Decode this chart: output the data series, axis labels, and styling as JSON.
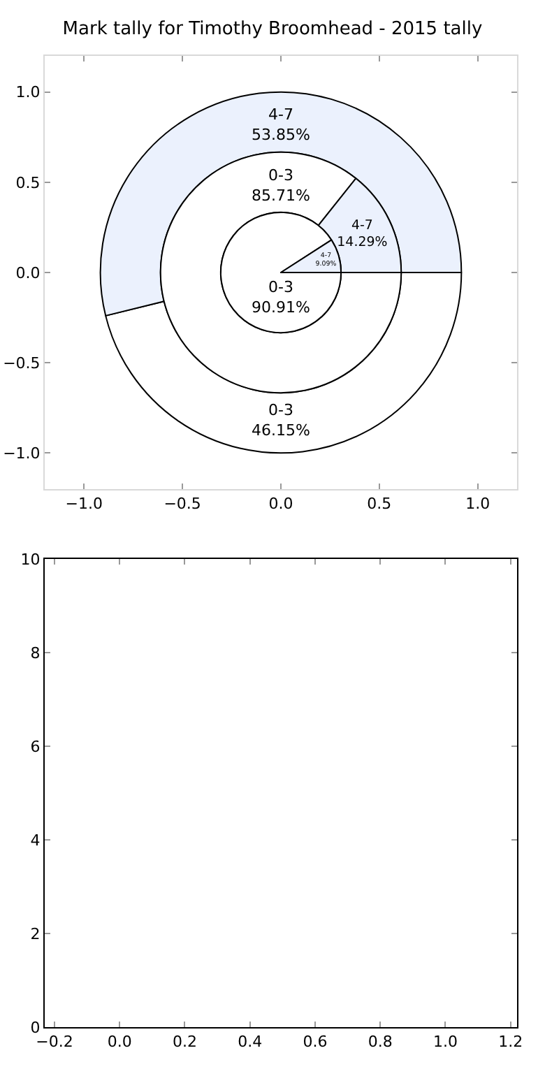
{
  "chart_data": [
    {
      "type": "scatter",
      "title": "Mark tally for Timothy Broomhead - 2015 tally",
      "xlim": [
        -1.2,
        1.2
      ],
      "ylim": [
        -1.2,
        1.2
      ],
      "xticks": [
        {
          "value": -1,
          "label": "−1.0"
        },
        {
          "value": -0.5,
          "label": "−0.5"
        },
        {
          "value": 0,
          "label": "0.0"
        },
        {
          "value": 0.5,
          "label": "0.5"
        },
        {
          "value": 1,
          "label": "1.0"
        }
      ],
      "yticks": [
        {
          "value": -1,
          "label": "−1.0"
        },
        {
          "value": -0.5,
          "label": "−0.5"
        },
        {
          "value": 0,
          "label": "0.0"
        },
        {
          "value": 0.5,
          "label": "0.5"
        },
        {
          "value": 1,
          "label": "1.0"
        }
      ]
    },
    {
      "type": "donut",
      "categories": [
        "0-3",
        "4-7"
      ],
      "colors": [
        "#ffffff",
        "#ebf1fd"
      ],
      "values": [
        46.15,
        53.85
      ],
      "value_labels": [
        "46.15%",
        "53.85%"
      ]
    },
    {
      "type": "donut",
      "categories": [
        "0-3",
        "4-7"
      ],
      "colors": [
        "#ffffff",
        "#ebf1fd"
      ],
      "values": [
        85.71,
        14.29
      ],
      "value_labels": [
        "85.71%",
        "14.29%"
      ]
    },
    {
      "type": "pie",
      "categories": [
        "0-3",
        "4-7"
      ],
      "colors": [
        "#ffffff",
        "#ebf1fd"
      ],
      "values": [
        90.91,
        9.09
      ],
      "value_labels": [
        "90.91%",
        "9.09%"
      ]
    },
    {
      "type": "scatter",
      "xlim": [
        -0.23,
        1.22
      ],
      "ylim": [
        0,
        10
      ],
      "xticks": [
        {
          "value": -0.2,
          "label": "−0.2"
        },
        {
          "value": 0,
          "label": "0.0"
        },
        {
          "value": 0.2,
          "label": "0.2"
        },
        {
          "value": 0.4,
          "label": "0.4"
        },
        {
          "value": 0.6,
          "label": "0.6"
        },
        {
          "value": 0.8,
          "label": "0.8"
        },
        {
          "value": 1,
          "label": "1.0"
        },
        {
          "value": 1.2,
          "label": "1.2"
        }
      ],
      "yticks": [
        0,
        2,
        4,
        6,
        8,
        10
      ]
    }
  ]
}
